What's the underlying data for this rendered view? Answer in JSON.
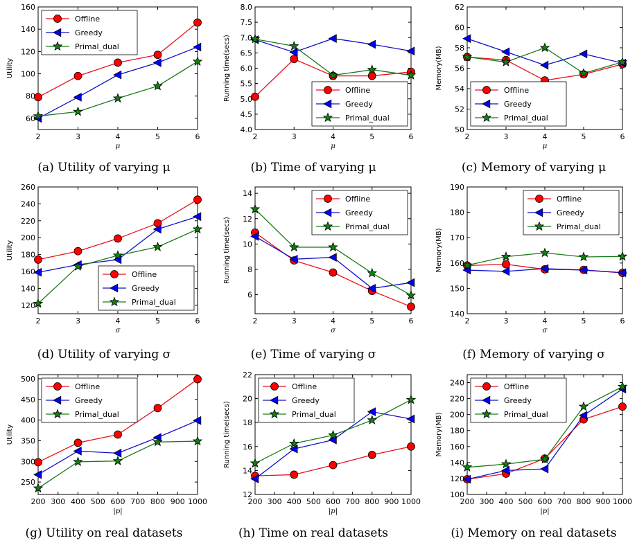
{
  "series_styles": {
    "Offline": {
      "color": "#e8121e",
      "marker": "circle",
      "fill": "#ff0000"
    },
    "Greedy": {
      "color": "#1010c8",
      "marker": "triangle-left",
      "fill": "#0000ff"
    },
    "Primal_dual": {
      "color": "#1a7a1a",
      "marker": "star",
      "fill": "#108010"
    }
  },
  "chart_data": [
    {
      "type": "line",
      "caption": "(a) Utility of varying μ",
      "x": [
        2,
        3,
        4,
        5,
        6
      ],
      "xlim": [
        2,
        6
      ],
      "xticks": [
        "2",
        "3",
        "4",
        "5",
        "6"
      ],
      "ylim": [
        50,
        160
      ],
      "yticks": [
        60,
        80,
        100,
        120,
        140,
        160
      ],
      "xlabel": "μ",
      "ylabel": "Utility",
      "legend": "top-left",
      "series": [
        {
          "name": "Offline",
          "values": [
            79,
            98,
            110,
            117,
            146
          ]
        },
        {
          "name": "Greedy",
          "values": [
            60,
            79,
            99,
            110,
            124
          ]
        },
        {
          "name": "Primal_dual",
          "values": [
            62,
            66,
            78,
            89,
            111
          ]
        }
      ]
    },
    {
      "type": "line",
      "caption": "(b) Time of varying μ",
      "x": [
        2,
        3,
        4,
        5,
        6
      ],
      "xlim": [
        2,
        6
      ],
      "xticks": [
        "2",
        "3",
        "4",
        "5",
        "6"
      ],
      "ylim": [
        4.0,
        8.0
      ],
      "yticks": [
        "4.0",
        "4.5",
        "5.0",
        "5.5",
        "6.0",
        "6.5",
        "7.0",
        "7.5",
        "8.0"
      ],
      "xlabel": "μ",
      "ylabel": "Running time(secs)",
      "legend": "bottom-right",
      "series": [
        {
          "name": "Offline",
          "values": [
            5.07,
            6.3,
            5.75,
            5.75,
            5.88
          ]
        },
        {
          "name": "Greedy",
          "values": [
            6.93,
            6.52,
            6.97,
            6.78,
            6.56
          ]
        },
        {
          "name": "Primal_dual",
          "values": [
            6.95,
            6.72,
            5.77,
            5.95,
            5.77
          ]
        }
      ]
    },
    {
      "type": "line",
      "caption": "(c) Memory of varying μ",
      "x": [
        2,
        3,
        4,
        5,
        6
      ],
      "xlim": [
        2,
        6
      ],
      "xticks": [
        "2",
        "3",
        "4",
        "5",
        "6"
      ],
      "ylim": [
        50,
        62
      ],
      "yticks": [
        50,
        52,
        54,
        56,
        58,
        60,
        62
      ],
      "xlabel": "μ",
      "ylabel": "Memory(MB)",
      "legend": "bottom-left",
      "series": [
        {
          "name": "Offline",
          "values": [
            57.1,
            56.8,
            54.8,
            55.4,
            56.4
          ]
        },
        {
          "name": "Greedy",
          "values": [
            58.9,
            57.6,
            56.3,
            57.4,
            56.5
          ]
        },
        {
          "name": "Primal_dual",
          "values": [
            57.1,
            56.6,
            58.0,
            55.5,
            56.6
          ]
        }
      ]
    },
    {
      "type": "line",
      "caption": "(d) Utility of varying σ",
      "x": [
        2,
        3,
        4,
        5,
        6
      ],
      "xlim": [
        2,
        6
      ],
      "xticks": [
        "2",
        "3",
        "4",
        "5",
        "6"
      ],
      "ylim": [
        110,
        260
      ],
      "yticks": [
        120,
        140,
        160,
        180,
        200,
        220,
        240,
        260
      ],
      "xlabel": "σ",
      "ylabel": "Utility",
      "legend": "bottom-right",
      "series": [
        {
          "name": "Offline",
          "values": [
            174,
            184,
            199,
            217,
            245
          ]
        },
        {
          "name": "Greedy",
          "values": [
            159,
            168,
            174,
            210,
            225
          ]
        },
        {
          "name": "Primal_dual",
          "values": [
            122,
            166,
            179,
            189,
            210
          ]
        }
      ]
    },
    {
      "type": "line",
      "caption": "(e) Time of varying σ",
      "x": [
        2,
        3,
        4,
        5,
        6
      ],
      "xlim": [
        2,
        6
      ],
      "xticks": [
        "2",
        "3",
        "4",
        "5",
        "6"
      ],
      "ylim": [
        4.5,
        14.5
      ],
      "yticks": [
        6,
        8,
        10,
        12,
        14
      ],
      "xlabel": "σ",
      "ylabel": "Running time(secs)",
      "legend": "top-right",
      "series": [
        {
          "name": "Offline",
          "values": [
            10.9,
            8.7,
            7.75,
            6.3,
            5.05
          ]
        },
        {
          "name": "Greedy",
          "values": [
            10.6,
            8.8,
            8.95,
            6.5,
            6.95
          ]
        },
        {
          "name": "Primal_dual",
          "values": [
            12.75,
            9.75,
            9.75,
            7.7,
            5.95
          ]
        }
      ]
    },
    {
      "type": "line",
      "caption": "(f) Memory of varying σ",
      "x": [
        2,
        3,
        4,
        5,
        6
      ],
      "xlim": [
        2,
        6
      ],
      "xticks": [
        "2",
        "3",
        "4",
        "5",
        "6"
      ],
      "ylim": [
        140,
        190
      ],
      "yticks": [
        140,
        150,
        160,
        170,
        180,
        190
      ],
      "xlabel": "σ",
      "ylabel": "Memory(MB)",
      "legend": "top-right",
      "series": [
        {
          "name": "Offline",
          "values": [
            159.0,
            159.5,
            157.5,
            157.3,
            156.1
          ]
        },
        {
          "name": "Greedy",
          "values": [
            157.2,
            156.7,
            157.8,
            157.2,
            156.2
          ]
        },
        {
          "name": "Primal_dual",
          "values": [
            159.1,
            162.5,
            164.0,
            162.4,
            162.6
          ]
        }
      ]
    },
    {
      "type": "line",
      "caption": "(g) Utility on real datasets",
      "x": [
        200,
        400,
        600,
        800,
        1000
      ],
      "xlim": [
        200,
        1000
      ],
      "xticks": [
        "200",
        "300",
        "400",
        "500",
        "600",
        "700",
        "800",
        "900",
        "1000"
      ],
      "ylim": [
        220,
        510
      ],
      "yticks": [
        250,
        300,
        350,
        400,
        450,
        500
      ],
      "xlabel": "|p|",
      "ylabel": "Utility",
      "legend": "top-left",
      "series": [
        {
          "name": "Offline",
          "values": [
            298,
            345,
            365,
            429,
            499
          ]
        },
        {
          "name": "Greedy",
          "values": [
            268,
            325,
            320,
            358,
            399
          ]
        },
        {
          "name": "Primal_dual",
          "values": [
            235,
            299,
            301,
            347,
            349
          ]
        }
      ]
    },
    {
      "type": "line",
      "caption": "(h) Time on real datasets",
      "x": [
        200,
        400,
        600,
        800,
        1000
      ],
      "xlim": [
        200,
        1000
      ],
      "xticks": [
        "200",
        "300",
        "400",
        "500",
        "600",
        "700",
        "800",
        "900",
        "1000"
      ],
      "ylim": [
        12,
        22
      ],
      "yticks": [
        12,
        14,
        16,
        18,
        20,
        22
      ],
      "xlabel": "|p|",
      "ylabel": "Running time(secs)",
      "legend": "top-left",
      "series": [
        {
          "name": "Offline",
          "values": [
            13.55,
            13.65,
            14.45,
            15.3,
            16.0
          ]
        },
        {
          "name": "Greedy",
          "values": [
            13.3,
            15.8,
            16.55,
            18.9,
            18.3
          ]
        },
        {
          "name": "Primal_dual",
          "values": [
            14.6,
            16.25,
            16.95,
            18.2,
            19.9
          ]
        }
      ]
    },
    {
      "type": "line",
      "caption": "(i) Memory on real datasets",
      "x": [
        200,
        400,
        600,
        800,
        1000
      ],
      "xlim": [
        200,
        1000
      ],
      "xticks": [
        "200",
        "300",
        "400",
        "500",
        "600",
        "700",
        "800",
        "900",
        "1000"
      ],
      "ylim": [
        100,
        250
      ],
      "yticks": [
        100,
        120,
        140,
        160,
        180,
        200,
        220,
        240
      ],
      "xlabel": "|p|",
      "ylabel": "Memory(MB)",
      "legend": "top-left",
      "series": [
        {
          "name": "Offline",
          "values": [
            119,
            126,
            145,
            194,
            210
          ]
        },
        {
          "name": "Greedy",
          "values": [
            119,
            130,
            132,
            199,
            232
          ]
        },
        {
          "name": "Primal_dual",
          "values": [
            134,
            138,
            144,
            210,
            235
          ]
        }
      ]
    }
  ]
}
